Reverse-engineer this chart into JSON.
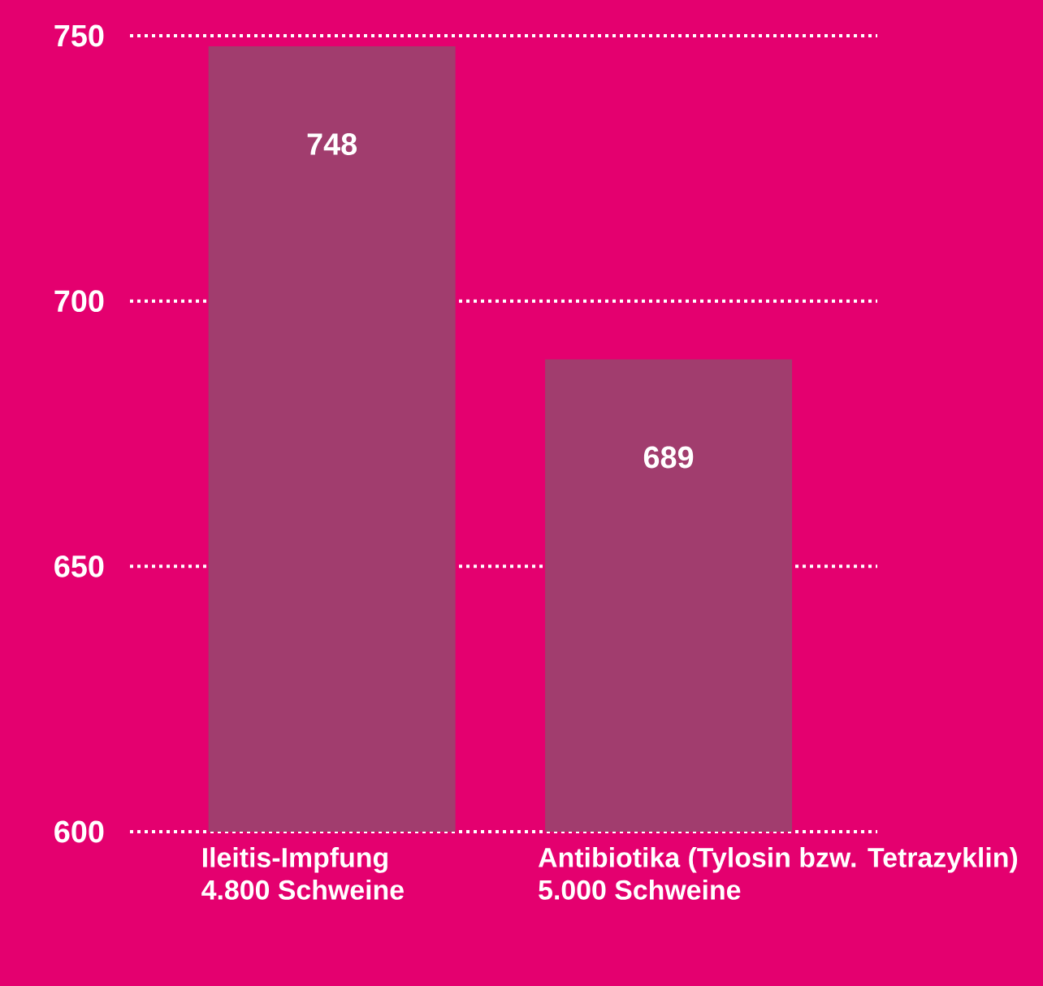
{
  "chart_data": {
    "type": "bar",
    "categories": [
      "Ileitis-Impfung 4.800 Schweine",
      "Antibiotika (Tylosin bzw. Tetrazyklin) 5.000 Schweine"
    ],
    "values": [
      748,
      689
    ],
    "color": "#a13d6e",
    "ylim": [
      600,
      750
    ],
    "yticks": [
      600,
      650,
      700,
      750
    ],
    "grid": "y",
    "data_labels": true
  }
}
